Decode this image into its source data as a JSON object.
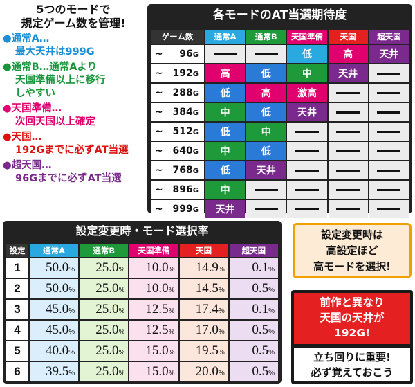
{
  "notes": {
    "headline": [
      "5つのモードで",
      "規定ゲーム数を管理!"
    ],
    "items": [
      {
        "title": "●通常A…",
        "lines": [
          "最大天井は999G"
        ],
        "color": "#1a8fd6"
      },
      {
        "title": "●通常B…通常Aより",
        "lines": [
          "天国準備以上に移行",
          "しやすい"
        ],
        "color": "#17963a"
      },
      {
        "title": "●天国準備…",
        "lines": [
          "次回天国以上確定"
        ],
        "color": "#e0006e"
      },
      {
        "title": "●天国…",
        "lines": [
          "192Gまでに必ずAT当選"
        ],
        "color": "#e01010"
      },
      {
        "title": "●超天国…",
        "lines": [
          "96Gまでに必ずAT当選"
        ],
        "color": "#7a2a8c"
      }
    ]
  },
  "at_table": {
    "title": "各モードのAT当選期待度",
    "headers": [
      {
        "label": "ゲーム数",
        "color": "#333333"
      },
      {
        "label": "通常A",
        "color": "#2aa8e0"
      },
      {
        "label": "通常B",
        "color": "#1e9a3a"
      },
      {
        "label": "天国準備",
        "color": "#e0006e"
      },
      {
        "label": "天国",
        "color": "#e52021"
      },
      {
        "label": "超天国",
        "color": "#7a2a8c"
      }
    ],
    "rows": [
      {
        "prefix": "~",
        "games": "96",
        "unit": "G",
        "cells": [
          {
            "v": "—",
            "c": ""
          },
          {
            "v": "—",
            "c": ""
          },
          {
            "v": "低",
            "c": "cyan"
          },
          {
            "v": "高",
            "c": "red"
          },
          {
            "v": "天井",
            "c": "purple"
          }
        ]
      },
      {
        "prefix": "~",
        "games": "192",
        "unit": "G",
        "cells": [
          {
            "v": "高",
            "c": "red"
          },
          {
            "v": "低",
            "c": "blue"
          },
          {
            "v": "中",
            "c": "green"
          },
          {
            "v": "天井",
            "c": "purple"
          },
          {
            "v": "—",
            "c": ""
          }
        ]
      },
      {
        "prefix": "~",
        "games": "288",
        "unit": "G",
        "cells": [
          {
            "v": "低",
            "c": "blue"
          },
          {
            "v": "高",
            "c": "red"
          },
          {
            "v": "激高",
            "c": "red"
          },
          {
            "v": "—",
            "c": ""
          },
          {
            "v": "—",
            "c": ""
          }
        ]
      },
      {
        "prefix": "~",
        "games": "384",
        "unit": "G",
        "cells": [
          {
            "v": "中",
            "c": "green"
          },
          {
            "v": "低",
            "c": "blue"
          },
          {
            "v": "天井",
            "c": "purple"
          },
          {
            "v": "—",
            "c": ""
          },
          {
            "v": "—",
            "c": ""
          }
        ]
      },
      {
        "prefix": "~",
        "games": "512",
        "unit": "G",
        "cells": [
          {
            "v": "低",
            "c": "blue"
          },
          {
            "v": "中",
            "c": "green"
          },
          {
            "v": "—",
            "c": ""
          },
          {
            "v": "—",
            "c": ""
          },
          {
            "v": "—",
            "c": ""
          }
        ]
      },
      {
        "prefix": "~",
        "games": "640",
        "unit": "G",
        "cells": [
          {
            "v": "中",
            "c": "green"
          },
          {
            "v": "低",
            "c": "blue"
          },
          {
            "v": "—",
            "c": ""
          },
          {
            "v": "—",
            "c": ""
          },
          {
            "v": "—",
            "c": ""
          }
        ]
      },
      {
        "prefix": "~",
        "games": "768",
        "unit": "G",
        "cells": [
          {
            "v": "低",
            "c": "blue"
          },
          {
            "v": "天井",
            "c": "purple"
          },
          {
            "v": "—",
            "c": ""
          },
          {
            "v": "—",
            "c": ""
          },
          {
            "v": "—",
            "c": ""
          }
        ]
      },
      {
        "prefix": "~",
        "games": "896",
        "unit": "G",
        "cells": [
          {
            "v": "中",
            "c": "green"
          },
          {
            "v": "—",
            "c": ""
          },
          {
            "v": "—",
            "c": ""
          },
          {
            "v": "—",
            "c": ""
          },
          {
            "v": "—",
            "c": ""
          }
        ]
      },
      {
        "prefix": "~",
        "games": "999",
        "unit": "G",
        "cells": [
          {
            "v": "天井",
            "c": "purple"
          },
          {
            "v": "—",
            "c": ""
          },
          {
            "v": "—",
            "c": ""
          },
          {
            "v": "—",
            "c": ""
          },
          {
            "v": "—",
            "c": ""
          }
        ]
      }
    ]
  },
  "settings_table": {
    "title": "設定変更時・モード選択率",
    "headers": [
      {
        "label": "設定",
        "color": "#333333"
      },
      {
        "label": "通常A",
        "color": "#2aa8e0"
      },
      {
        "label": "通常B",
        "color": "#1e9a3a"
      },
      {
        "label": "天国準備",
        "color": "#e0006e"
      },
      {
        "label": "天国",
        "color": "#e52021"
      },
      {
        "label": "超天国",
        "color": "#7a2a8c"
      }
    ],
    "rows": [
      {
        "setting": "1",
        "values": [
          "50.0",
          "25.0",
          "10.0",
          "14.9",
          "0.1"
        ]
      },
      {
        "setting": "2",
        "values": [
          "50.0",
          "25.0",
          "10.0",
          "14.5",
          "0.5"
        ]
      },
      {
        "setting": "3",
        "values": [
          "45.0",
          "25.0",
          "12.5",
          "17.4",
          "0.1"
        ]
      },
      {
        "setting": "4",
        "values": [
          "45.0",
          "25.0",
          "12.5",
          "17.0",
          "0.5"
        ]
      },
      {
        "setting": "5",
        "values": [
          "40.0",
          "25.0",
          "15.0",
          "19.5",
          "0.5"
        ]
      },
      {
        "setting": "6",
        "values": [
          "39.5",
          "25.0",
          "15.0",
          "20.0",
          "0.5"
        ]
      }
    ],
    "unit": "%"
  },
  "callouts": {
    "settings_note": [
      "設定変更時は",
      "高設定ほど",
      "高モードを選択!"
    ],
    "prev_note": [
      "前作と異なり",
      "天国の天井が",
      "192G!"
    ],
    "advice": [
      "立ち回りに重要!",
      "必ず覚えておこう"
    ]
  }
}
